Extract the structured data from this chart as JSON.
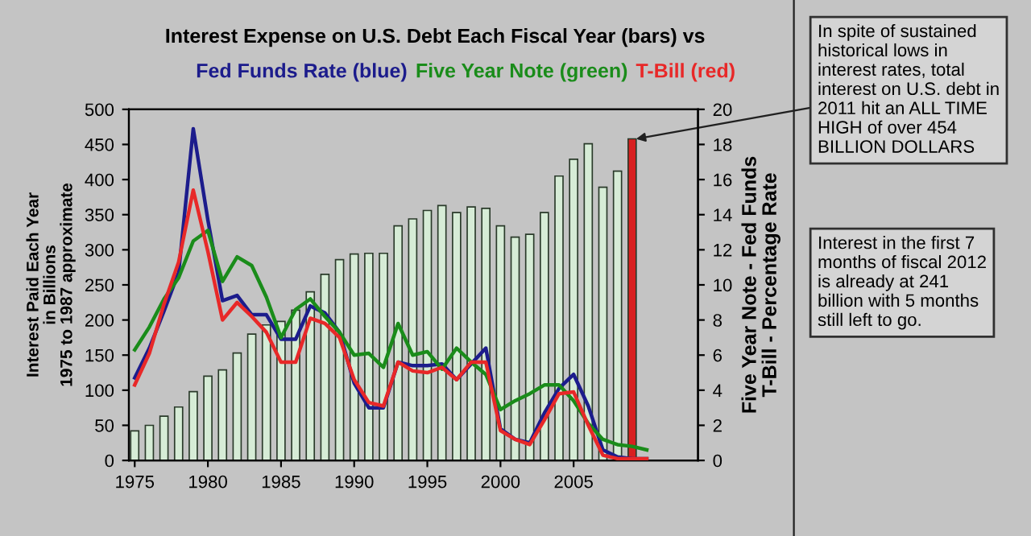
{
  "chart_data": {
    "type": "bar",
    "title": "Interest Expense on U.S. Debt Each Fiscal Year (bars) vs",
    "ylabel": "Interest Paid Each Year\nin Billions\n1975 to 1987 approximate",
    "y2label": "Five Year Note - Fed Funds\nT-Bill - Percentage Rate",
    "x": [
      1975,
      1976,
      1977,
      1978,
      1979,
      1980,
      1981,
      1982,
      1983,
      1984,
      1985,
      1986,
      1987,
      1988,
      1989,
      1990,
      1991,
      1992,
      1993,
      1994,
      1995,
      1996,
      1997,
      1998,
      1999,
      2000,
      2001,
      2002,
      2003,
      2004,
      2005,
      2006,
      2007,
      2008,
      2009
    ],
    "xlim": [
      1974.6,
      2013.5
    ],
    "xticks": [
      1975,
      1980,
      1985,
      1990,
      1995,
      2000,
      2005
    ],
    "ylim": [
      0,
      500
    ],
    "yticks": [
      0,
      50,
      100,
      150,
      200,
      250,
      300,
      350,
      400,
      450,
      500
    ],
    "y2lim": [
      0,
      20
    ],
    "y2ticks": [
      0,
      2,
      4,
      6,
      8,
      10,
      12,
      14,
      16,
      18,
      20
    ],
    "series": [
      {
        "colors": [
          "#d6ecd6",
          "#d6ecd6",
          "#d6ecd6",
          "#d6ecd6",
          "#d6ecd6",
          "#d6ecd6",
          "#d6ecd6",
          "#d6ecd6",
          "#d6ecd6",
          "#d6ecd6",
          "#d6ecd6",
          "#d6ecd6",
          "#d6ecd6",
          "#d6ecd6",
          "#d6ecd6",
          "#d6ecd6",
          "#d6ecd6",
          "#d6ecd6",
          "#d6ecd6",
          "#d6ecd6",
          "#d6ecd6",
          "#d6ecd6",
          "#d6ecd6",
          "#d6ecd6",
          "#d6ecd6",
          "#d6ecd6",
          "#d6ecd6",
          "#d6ecd6",
          "#d6ecd6",
          "#d6ecd6",
          "#d6ecd6",
          "#d6ecd6",
          "#d6ecd6",
          "#d6ecd6",
          "#d82020"
        ],
        "values": [
          42,
          50,
          63,
          76,
          98,
          120,
          129,
          153,
          180,
          193,
          198,
          214,
          240,
          265,
          286,
          294,
          295,
          295,
          334,
          344,
          356,
          363,
          353,
          361,
          359,
          334,
          318,
          322,
          353,
          405,
          429,
          451,
          389,
          412,
          458
        ]
      },
      {
        "type": "line",
        "axis": "y2",
        "name": "Fed Funds Rate (blue)",
        "color": "#1c1c8c",
        "x": [
          1975,
          1976,
          1977,
          1978,
          1979,
          1980,
          1981,
          1982,
          1983,
          1984,
          1985,
          1986,
          1987,
          1988,
          1989,
          1990,
          1991,
          1992,
          1993,
          1994,
          1995,
          1996,
          1997,
          1998,
          1999,
          2000,
          2001,
          2002,
          2003,
          2004,
          2005,
          2006,
          2007,
          2008,
          2009,
          2010
        ],
        "values": [
          4.7,
          6.4,
          8.5,
          10.7,
          18.9,
          13.7,
          9.1,
          9.4,
          8.3,
          8.3,
          6.9,
          6.9,
          8.8,
          8.4,
          7.3,
          4.4,
          3.0,
          3.0,
          5.6,
          5.4,
          5.4,
          5.5,
          4.6,
          5.5,
          6.4,
          1.8,
          1.2,
          1.0,
          2.7,
          4.1,
          4.9,
          3.1,
          0.6,
          0.2,
          0.1,
          0.1
        ]
      },
      {
        "type": "line",
        "axis": "y2",
        "name": "Five Year Note (green)",
        "color": "#1a8c1a",
        "x": [
          1975,
          1976,
          1977,
          1978,
          1979,
          1980,
          1981,
          1982,
          1983,
          1984,
          1985,
          1986,
          1987,
          1988,
          1989,
          1990,
          1991,
          1992,
          1993,
          1994,
          1995,
          1996,
          1997,
          1998,
          1999,
          2000,
          2001,
          2002,
          2003,
          2004,
          2005,
          2006,
          2007,
          2008,
          2009,
          2010
        ],
        "values": [
          6.3,
          7.6,
          9.2,
          10.4,
          12.5,
          13.1,
          10.2,
          11.6,
          11.1,
          9.3,
          7.0,
          8.6,
          9.2,
          8.2,
          7.3,
          6.0,
          6.1,
          5.3,
          7.8,
          6.0,
          6.2,
          5.2,
          6.4,
          5.6,
          4.9,
          2.9,
          3.4,
          3.8,
          4.3,
          4.3,
          3.4,
          2.1,
          1.2,
          0.9,
          0.8,
          0.6
        ]
      },
      {
        "type": "line",
        "axis": "y2",
        "name": "T-Bill (red)",
        "color": "#e82828",
        "x": [
          1975,
          1976,
          1977,
          1978,
          1979,
          1980,
          1981,
          1982,
          1983,
          1984,
          1985,
          1986,
          1987,
          1988,
          1989,
          1990,
          1991,
          1992,
          1993,
          1994,
          1995,
          1996,
          1997,
          1998,
          1999,
          2000,
          2001,
          2002,
          2003,
          2004,
          2005,
          2006,
          2007,
          2008,
          2009,
          2010
        ],
        "values": [
          4.3,
          6.1,
          8.9,
          11.3,
          15.4,
          11.9,
          8.0,
          9.0,
          8.2,
          7.3,
          5.6,
          5.6,
          8.1,
          7.8,
          7.0,
          4.6,
          3.3,
          3.1,
          5.6,
          5.1,
          5.0,
          5.3,
          4.6,
          5.6,
          5.6,
          1.7,
          1.2,
          0.9,
          2.3,
          3.8,
          3.9,
          2.0,
          0.3,
          0.1,
          0.1,
          0.1
        ]
      }
    ],
    "annotations": [
      {
        "text": "In spite of sustained\nhistorical lows in\ninterest rates, total\ninterest on U.S. debt in\n2011 hit an ALL TIME\nHIGH of over 454\nBILLION DOLLARS",
        "x": 2009,
        "y": 458
      },
      "Interest in the first 7\nmonths of fiscal 2012\nis already at 241\nbillion with 5 months\nstill left to go."
    ],
    "grid": false,
    "legend": false
  }
}
